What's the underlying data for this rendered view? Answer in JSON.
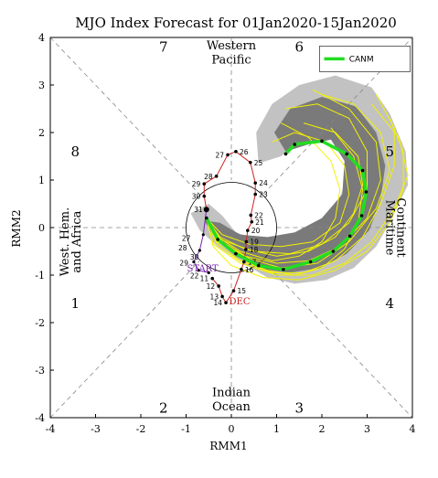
{
  "chart_data": {
    "type": "line",
    "title": "MJO Index Forecast for 01Jan2020-15Jan2020",
    "xlabel": "RMM1",
    "ylabel": "RMM2",
    "xlim": [
      -4,
      4
    ],
    "ylim": [
      -4,
      4
    ],
    "xticks": [
      "-4",
      "-3",
      "-2",
      "-1",
      "0",
      "1",
      "2",
      "3",
      "4"
    ],
    "yticks": [
      "-4",
      "-3",
      "-2",
      "-1",
      "0",
      "1",
      "2",
      "3",
      "4"
    ],
    "grid": "diagonal phase dividers (dashed)",
    "unit_circle_radius": 1,
    "legend": {
      "position": "top-right",
      "entries": [
        {
          "name": "CANM",
          "color": "#22dd22"
        }
      ]
    },
    "phase_labels": [
      {
        "text": "1",
        "x": -3.45,
        "y": -1.6
      },
      {
        "text": "2",
        "x": -1.5,
        "y": -3.8
      },
      {
        "text": "3",
        "x": 1.5,
        "y": -3.8
      },
      {
        "text": "4",
        "x": 3.5,
        "y": -1.6
      },
      {
        "text": "5",
        "x": 3.5,
        "y": 1.6
      },
      {
        "text": "6",
        "x": 1.5,
        "y": 3.8
      },
      {
        "text": "7",
        "x": -1.5,
        "y": 3.8
      },
      {
        "text": "8",
        "x": -3.45,
        "y": 1.6
      }
    ],
    "region_labels": {
      "top": [
        "Western",
        "Pacific"
      ],
      "bottom": [
        "Indian",
        "Ocean"
      ],
      "left": [
        "West. Hem.",
        "and Africa"
      ],
      "right": [
        "Maritime",
        "Continent"
      ]
    },
    "observed_december": {
      "color": "#cc2222",
      "points": [
        {
          "day": "11",
          "x": -0.42,
          "y": -1.07
        },
        {
          "day": "12",
          "x": -0.28,
          "y": -1.23
        },
        {
          "day": "13",
          "x": -0.2,
          "y": -1.45
        },
        {
          "day": "14",
          "x": -0.12,
          "y": -1.58
        },
        {
          "day": "15",
          "x": 0.05,
          "y": -1.33
        },
        {
          "day": "16",
          "x": 0.22,
          "y": -0.88
        },
        {
          "day": "17",
          "x": 0.28,
          "y": -0.72
        },
        {
          "day": "18",
          "x": 0.32,
          "y": -0.46
        },
        {
          "day": "19",
          "x": 0.33,
          "y": -0.3
        },
        {
          "day": "20",
          "x": 0.36,
          "y": -0.06
        },
        {
          "day": "21",
          "x": 0.45,
          "y": 0.12
        },
        {
          "day": "22",
          "x": 0.43,
          "y": 0.26
        },
        {
          "day": "23",
          "x": 0.53,
          "y": 0.7
        },
        {
          "day": "24",
          "x": 0.53,
          "y": 0.94
        },
        {
          "day": "25",
          "x": 0.42,
          "y": 1.37
        },
        {
          "day": "26",
          "x": 0.1,
          "y": 1.6
        },
        {
          "day": "27",
          "x": -0.08,
          "y": 1.53
        },
        {
          "day": "28",
          "x": -0.33,
          "y": 1.08
        },
        {
          "day": "29",
          "x": -0.6,
          "y": 0.92
        },
        {
          "day": "30",
          "x": -0.6,
          "y": 0.66
        },
        {
          "day": "31",
          "x": -0.55,
          "y": 0.38
        }
      ]
    },
    "observed_january": {
      "color": "#7722aa",
      "points": [
        {
          "x": -0.55,
          "y": 0.38
        },
        {
          "x": -0.62,
          "y": -0.15
        },
        {
          "x": -0.7,
          "y": -0.48
        },
        {
          "x": -0.83,
          "y": -0.72
        },
        {
          "x": -0.72,
          "y": -0.9
        },
        {
          "x": -0.5,
          "y": -0.95
        }
      ],
      "day_labels": [
        {
          "day": "27",
          "x": -0.9,
          "y": -0.28
        },
        {
          "day": "28",
          "x": -0.98,
          "y": -0.48
        },
        {
          "day": "29",
          "x": -0.95,
          "y": -0.8
        },
        {
          "day": "30",
          "x": -0.72,
          "y": -0.67
        },
        {
          "day": "22",
          "x": -0.72,
          "y": -1.07
        }
      ]
    },
    "start_label": "START",
    "dec_label": "DEC",
    "ensemble_mean": {
      "color": "#22dd22",
      "points": [
        {
          "x": -0.55,
          "y": 0.2
        },
        {
          "x": -0.3,
          "y": -0.25
        },
        {
          "x": 0.1,
          "y": -0.55
        },
        {
          "x": 0.6,
          "y": -0.8
        },
        {
          "x": 1.15,
          "y": -0.88
        },
        {
          "x": 1.75,
          "y": -0.72
        },
        {
          "x": 2.25,
          "y": -0.5
        },
        {
          "x": 2.62,
          "y": -0.18
        },
        {
          "x": 2.88,
          "y": 0.25
        },
        {
          "x": 2.98,
          "y": 0.75
        },
        {
          "x": 2.9,
          "y": 1.2
        },
        {
          "x": 2.55,
          "y": 1.55
        },
        {
          "x": 2.0,
          "y": 1.82
        },
        {
          "x": 1.4,
          "y": 1.75
        },
        {
          "x": 1.2,
          "y": 1.55
        }
      ]
    }
  }
}
